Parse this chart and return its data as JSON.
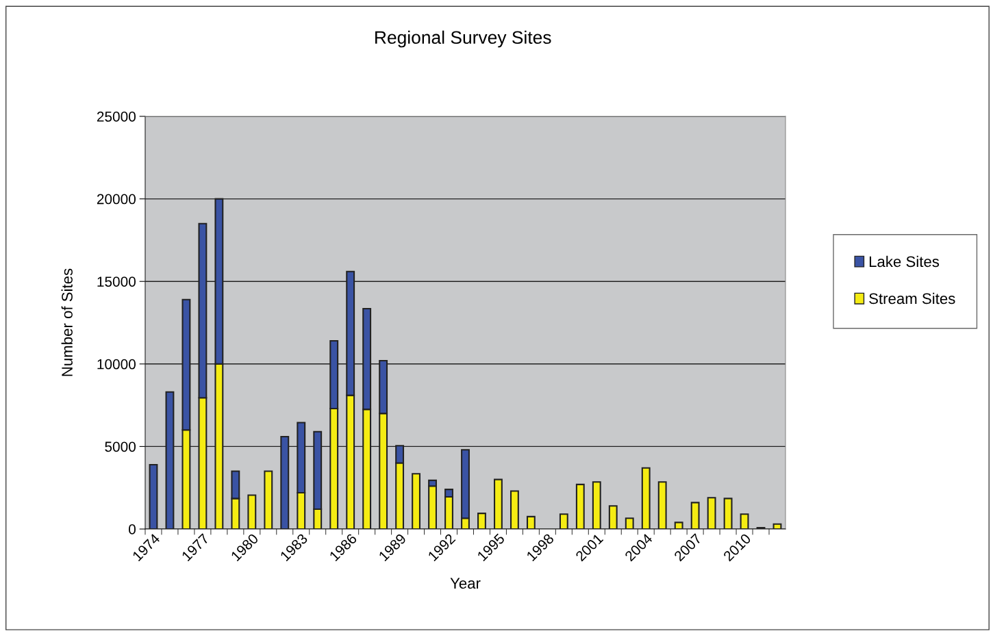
{
  "chart_data": {
    "type": "bar",
    "title": "Regional Survey Sites",
    "xlabel": "Year",
    "ylabel": "Number of Sites",
    "categories": [
      "1974",
      null,
      null,
      "1977",
      null,
      null,
      "1980",
      null,
      null,
      "1983",
      null,
      null,
      "1986",
      null,
      null,
      "1989",
      null,
      null,
      "1992",
      null,
      null,
      "1995",
      null,
      null,
      "1998",
      null,
      null,
      "2001",
      null,
      null,
      "2004",
      null,
      null,
      "2007",
      null,
      null,
      "2010",
      null,
      null
    ],
    "stacked": true,
    "series": [
      {
        "name": "Stream Sites",
        "color": "#f5ec13",
        "values": [
          null,
          null,
          6000,
          7950,
          10000,
          1850,
          2050,
          3500,
          null,
          2200,
          1200,
          7300,
          8100,
          7250,
          7000,
          4000,
          3350,
          2600,
          1950,
          650,
          950,
          3000,
          2300,
          750,
          null,
          900,
          2700,
          2850,
          1400,
          650,
          3700,
          2850,
          400,
          1600,
          1900,
          1850,
          900,
          null,
          300
        ]
      },
      {
        "name": "Lake Sites",
        "color": "#3a53a4",
        "values": [
          3900,
          8300,
          7900,
          10550,
          10000,
          1650,
          null,
          null,
          5600,
          4250,
          4700,
          4100,
          7500,
          6100,
          3200,
          1050,
          null,
          350,
          450,
          4150,
          null,
          null,
          null,
          null,
          null,
          null,
          null,
          null,
          null,
          null,
          null,
          null,
          null,
          null,
          null,
          null,
          null,
          80,
          null
        ]
      }
    ],
    "ylim": [
      0,
      25000
    ],
    "yticks": [
      0,
      5000,
      10000,
      15000,
      20000,
      25000
    ],
    "grid": "y",
    "legend": "right"
  }
}
